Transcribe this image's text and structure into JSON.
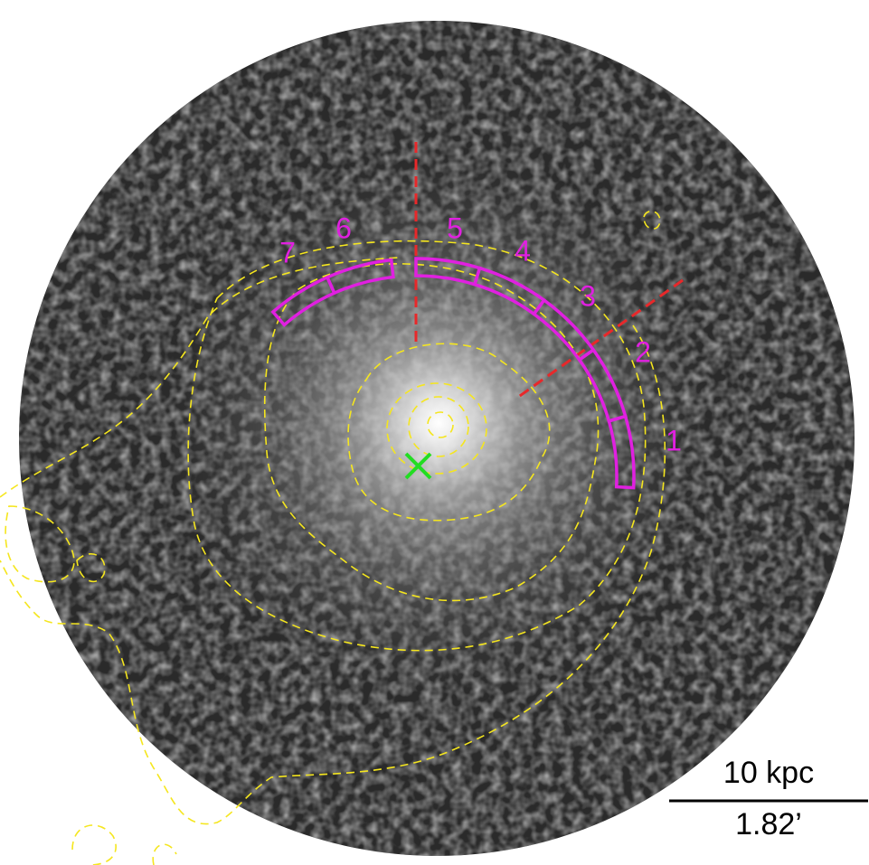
{
  "region_labels": [
    "1",
    "2",
    "3",
    "4",
    "5",
    "6",
    "7"
  ],
  "scale_bar": {
    "top": "10 kpc",
    "bottom": "1.82’"
  }
}
